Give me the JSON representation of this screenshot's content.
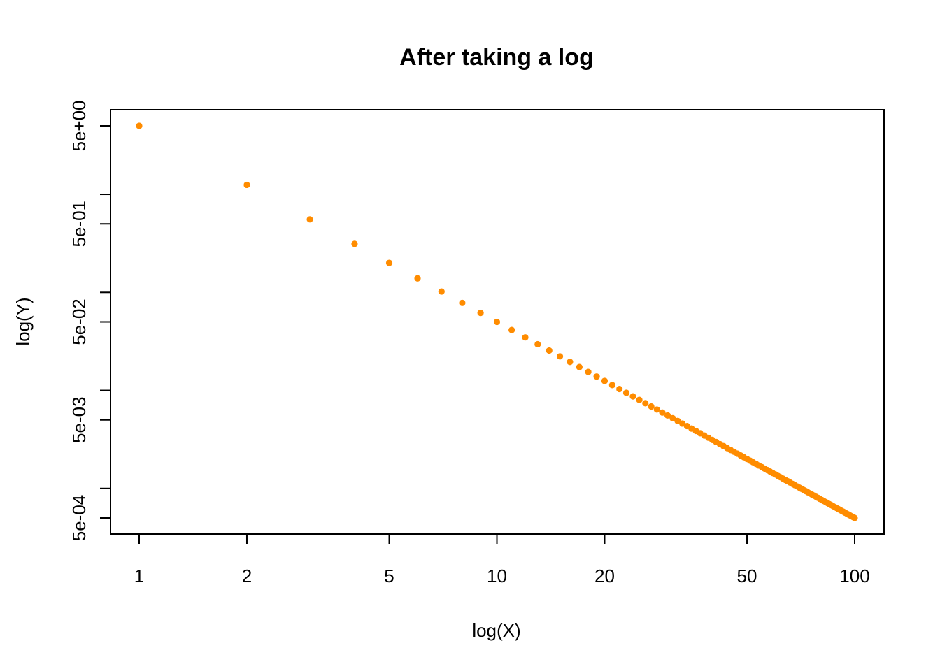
{
  "chart_data": {
    "type": "scatter",
    "title": "After taking a log",
    "xlabel": "log(X)",
    "ylabel": "log(Y)",
    "x_scale": "log",
    "y_scale": "log",
    "x_ticks": [
      1,
      2,
      5,
      10,
      20,
      50,
      100
    ],
    "x_tick_labels": [
      "1",
      "2",
      "5",
      "10",
      "20",
      "50",
      "100"
    ],
    "y_ticks": [
      0.0005,
      0.005,
      0.05,
      0.5,
      5
    ],
    "y_tick_labels": [
      "5e-04",
      "5e-03",
      "5e-02",
      "5e-01",
      "5e+00"
    ],
    "x_range": [
      1,
      100
    ],
    "y_range": [
      0.0005,
      5
    ],
    "point_color": "#FF8C00",
    "grid": false,
    "legend": "none",
    "series": [
      {
        "x_from": 1,
        "x_to": 100,
        "x_step": 1,
        "y_formula": "5 / x^2"
      }
    ]
  }
}
